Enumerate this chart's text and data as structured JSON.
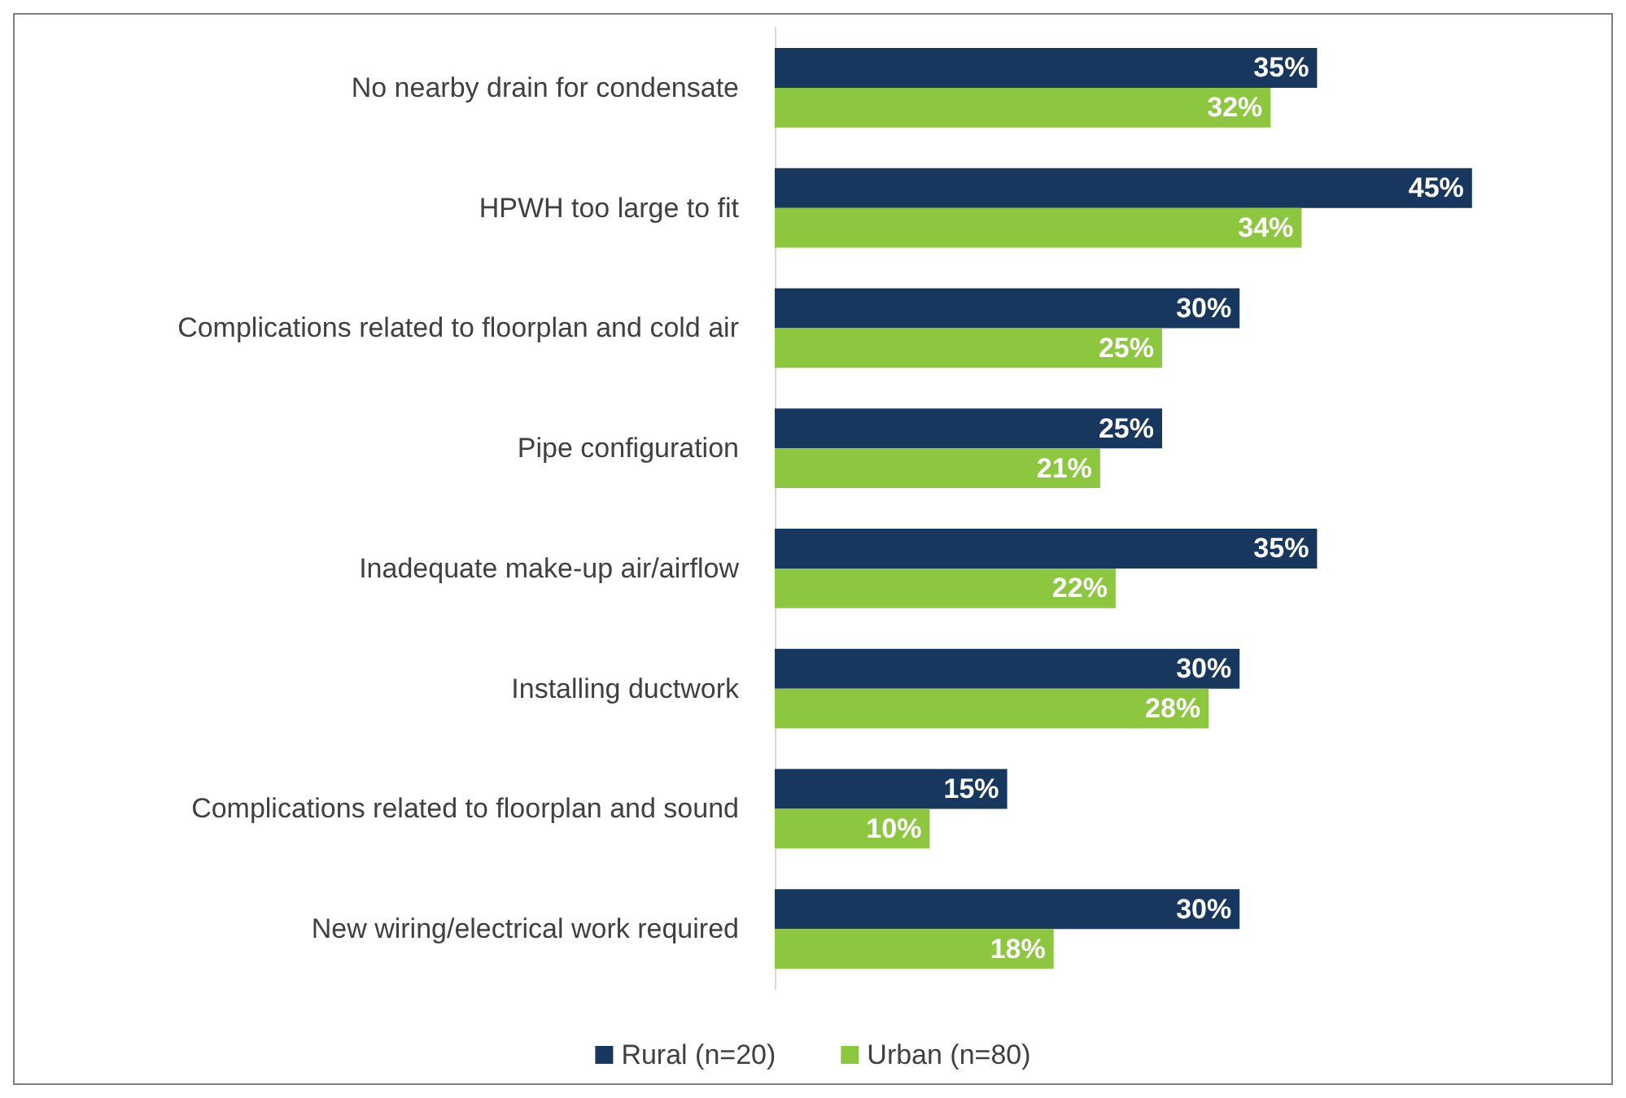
{
  "chart_data": {
    "type": "bar",
    "orientation": "horizontal",
    "categories": [
      "No nearby drain for condensate",
      "HPWH too large to fit",
      "Complications related to floorplan and cold air",
      "Pipe configuration",
      "Inadequate make-up air/airflow",
      "Installing ductwork",
      "Complications related to floorplan and sound",
      "New wiring/electrical work required"
    ],
    "series": [
      {
        "name": "Rural (n=20)",
        "color": "#17375e",
        "values": [
          35,
          45,
          30,
          25,
          35,
          30,
          15,
          30
        ],
        "value_labels": [
          "35%",
          "45%",
          "30%",
          "25%",
          "35%",
          "30%",
          "15%",
          "30%"
        ]
      },
      {
        "name": "Urban (n=80)",
        "color": "#8dc63f",
        "values": [
          32,
          34,
          25,
          21,
          22,
          28,
          10,
          18
        ],
        "value_labels": [
          "32%",
          "34%",
          "25%",
          "21%",
          "22%",
          "28%",
          "10%",
          "18%"
        ]
      }
    ],
    "legend": "bottom"
  }
}
